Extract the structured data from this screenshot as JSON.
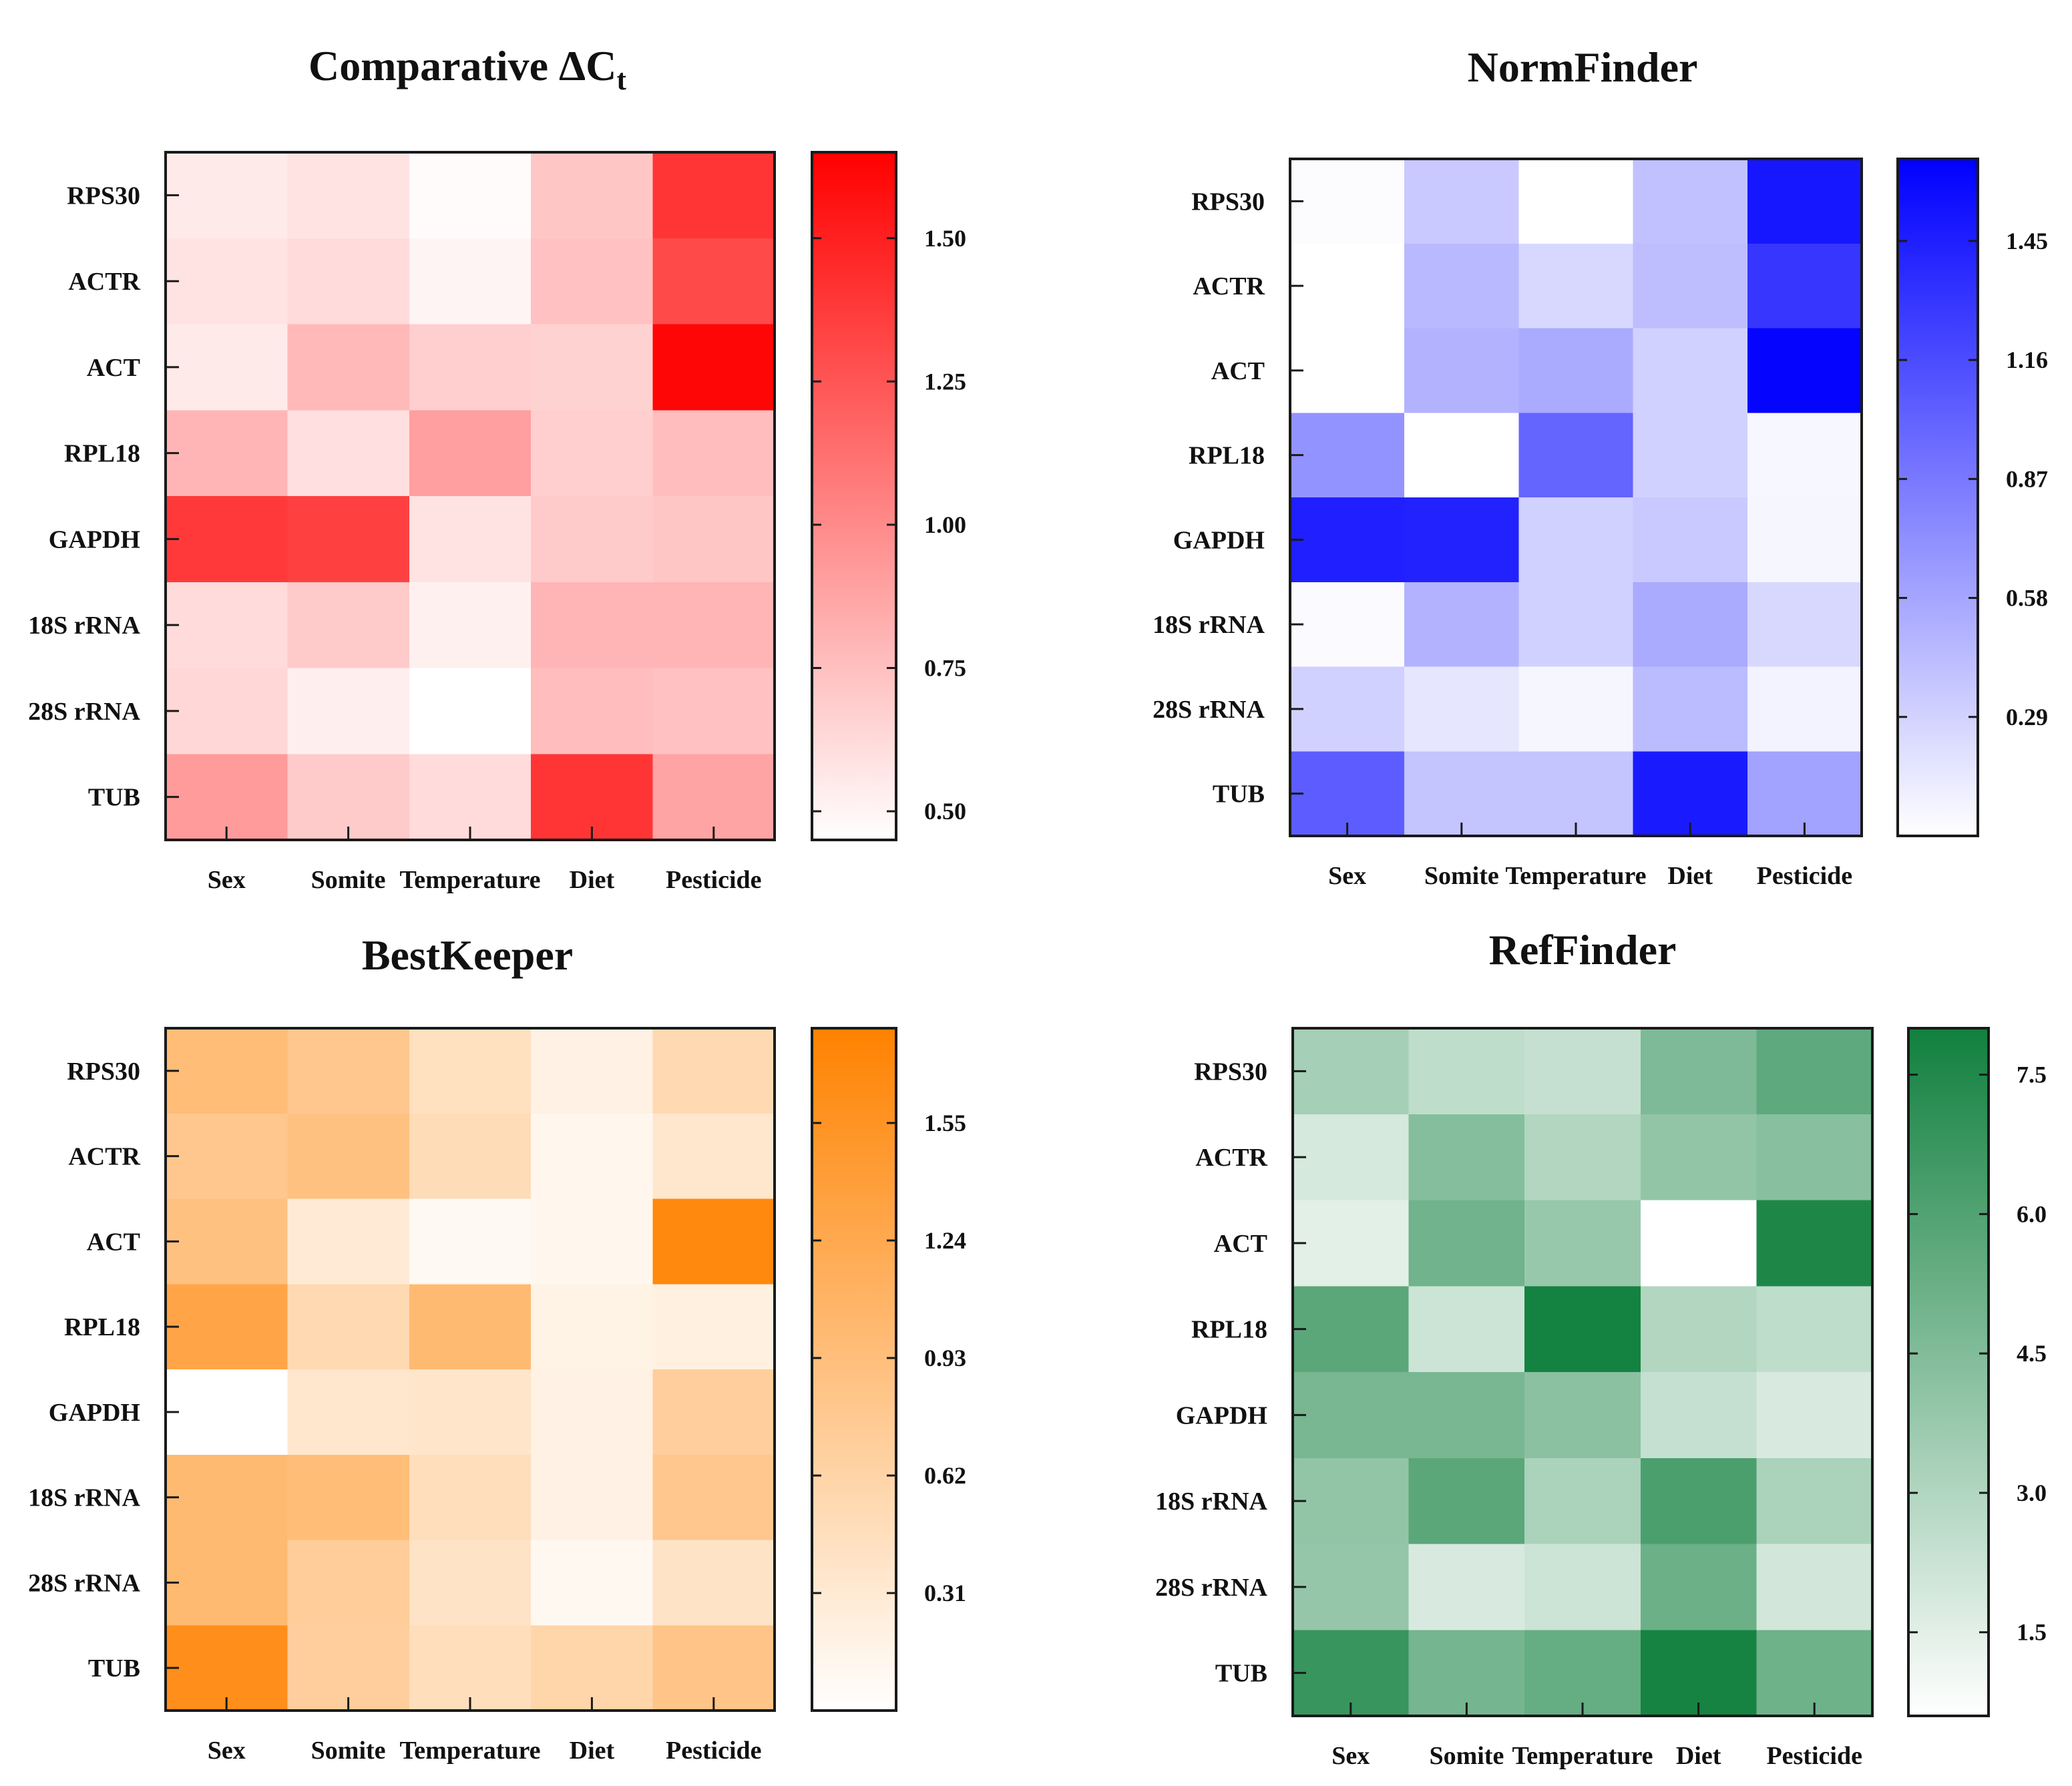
{
  "chart_data": [
    {
      "type": "heatmap",
      "title": "Comparative ΔCt",
      "title_main": "Comparative ",
      "title_delta": "ΔC",
      "title_sub": "t",
      "rows": [
        "RPS30",
        "ACTR",
        "ACT",
        "RPL18",
        "GAPDH",
        "18S rRNA",
        "28S rRNA",
        "TUB"
      ],
      "columns": [
        "Sex",
        "Somite",
        "Temperature",
        "Diet",
        "Pesticide"
      ],
      "values": [
        [
          0.55,
          0.58,
          0.47,
          0.72,
          1.4
        ],
        [
          0.58,
          0.62,
          0.5,
          0.74,
          1.3
        ],
        [
          0.55,
          0.78,
          0.68,
          0.66,
          1.62
        ],
        [
          0.8,
          0.6,
          0.9,
          0.68,
          0.76
        ],
        [
          1.38,
          1.35,
          0.58,
          0.7,
          0.72
        ],
        [
          0.62,
          0.7,
          0.52,
          0.8,
          0.8
        ],
        [
          0.64,
          0.53,
          0.44,
          0.76,
          0.74
        ],
        [
          0.92,
          0.7,
          0.62,
          1.4,
          0.88
        ]
      ],
      "colorbar": {
        "min": 0.45,
        "max": 1.65,
        "ticks": [
          "0.50",
          "0.75",
          "1.00",
          "1.25",
          "1.50"
        ],
        "tick_values": [
          0.5,
          0.75,
          1.0,
          1.25,
          1.5
        ]
      },
      "colormap": [
        "#ffffff",
        "#ff0000"
      ]
    },
    {
      "type": "heatmap",
      "title": "NormFinder",
      "rows": [
        "RPS30",
        "ACTR",
        "ACT",
        "RPL18",
        "GAPDH",
        "18S rRNA",
        "28S rRNA",
        "TUB"
      ],
      "columns": [
        "Sex",
        "Somite",
        "Temperature",
        "Diet",
        "Pesticide"
      ],
      "values": [
        [
          0.02,
          0.35,
          0.0,
          0.4,
          1.5
        ],
        [
          0.0,
          0.45,
          0.25,
          0.42,
          1.3
        ],
        [
          0.0,
          0.5,
          0.55,
          0.3,
          1.62
        ],
        [
          0.7,
          0.0,
          1.0,
          0.3,
          0.05
        ],
        [
          1.45,
          1.43,
          0.3,
          0.35,
          0.06
        ],
        [
          0.03,
          0.5,
          0.3,
          0.55,
          0.25
        ],
        [
          0.3,
          0.16,
          0.06,
          0.44,
          0.08
        ],
        [
          1.05,
          0.38,
          0.38,
          1.48,
          0.6
        ]
      ],
      "colorbar": {
        "min": 0.0,
        "max": 1.65,
        "ticks": [
          "0.29",
          "0.58",
          "0.87",
          "1.16",
          "1.45"
        ],
        "tick_values": [
          0.29,
          0.58,
          0.87,
          1.16,
          1.45
        ]
      },
      "colormap": [
        "#ffffff",
        "#0000ff"
      ]
    },
    {
      "type": "heatmap",
      "title": "BestKeeper",
      "rows": [
        "RPS30",
        "ACTR",
        "ACT",
        "RPL18",
        "GAPDH",
        "18S rRNA",
        "28S rRNA",
        "TUB"
      ],
      "columns": [
        "Sex",
        "Somite",
        "Temperature",
        "Diet",
        "Pesticide"
      ],
      "values": [
        [
          0.95,
          0.8,
          0.45,
          0.2,
          0.55
        ],
        [
          0.8,
          0.9,
          0.5,
          0.12,
          0.35
        ],
        [
          0.9,
          0.3,
          0.08,
          0.12,
          1.7
        ],
        [
          1.3,
          0.55,
          1.0,
          0.18,
          0.22
        ],
        [
          0.0,
          0.35,
          0.38,
          0.2,
          0.7
        ],
        [
          1.0,
          0.95,
          0.48,
          0.2,
          0.8
        ],
        [
          1.0,
          0.72,
          0.4,
          0.1,
          0.4
        ],
        [
          1.62,
          0.7,
          0.48,
          0.6,
          0.85
        ]
      ],
      "colorbar": {
        "min": 0.0,
        "max": 1.8,
        "ticks": [
          "0.31",
          "0.62",
          "0.93",
          "1.24",
          "1.55"
        ],
        "tick_values": [
          0.31,
          0.62,
          0.93,
          1.24,
          1.55
        ]
      },
      "colormap": [
        "#ffffff",
        "#ff8200"
      ]
    },
    {
      "type": "heatmap",
      "title": "RefFinder",
      "rows": [
        "RPS30",
        "ACTR",
        "ACT",
        "RPL18",
        "GAPDH",
        "18S rRNA",
        "28S rRNA",
        "TUB"
      ],
      "columns": [
        "Sex",
        "Somite",
        "Temperature",
        "Diet",
        "Pesticide"
      ],
      "values": [
        [
          3.4,
          2.6,
          2.4,
          4.6,
          5.6
        ],
        [
          1.9,
          4.4,
          3.0,
          4.0,
          4.3
        ],
        [
          1.5,
          5.0,
          3.8,
          0.6,
          7.6
        ],
        [
          5.7,
          2.2,
          7.9,
          3.0,
          2.6
        ],
        [
          4.8,
          4.8,
          4.2,
          2.4,
          1.8
        ],
        [
          4.0,
          5.7,
          3.2,
          6.2,
          3.2
        ],
        [
          3.9,
          1.8,
          2.2,
          5.2,
          2.0
        ],
        [
          6.8,
          4.9,
          5.4,
          7.8,
          5.1
        ]
      ],
      "colorbar": {
        "min": 0.6,
        "max": 8.0,
        "ticks": [
          "1.5",
          "3.0",
          "4.5",
          "6.0",
          "7.5"
        ],
        "tick_values": [
          1.5,
          3.0,
          4.5,
          6.0,
          7.5
        ]
      },
      "colormap": [
        "#ffffff",
        "#11803e"
      ]
    }
  ]
}
